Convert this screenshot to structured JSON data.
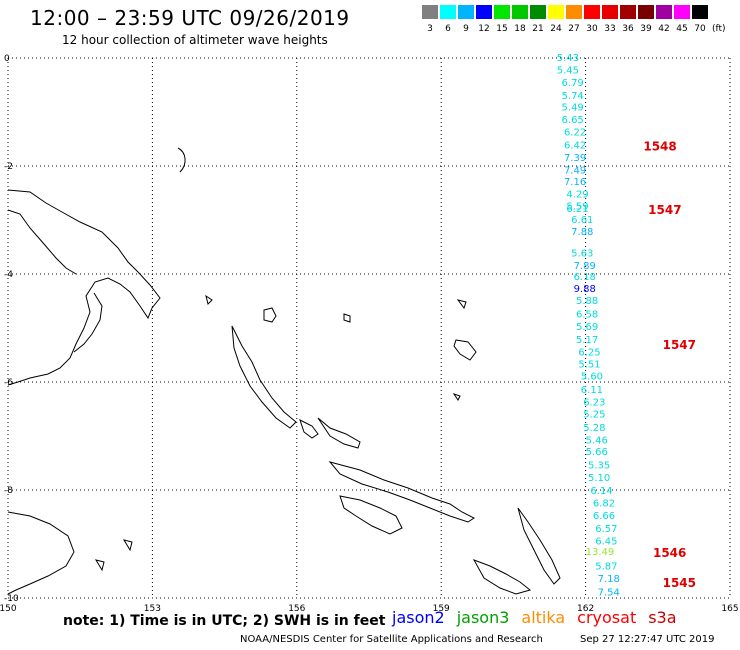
{
  "header": {
    "title": "12:00 – 23:59 UTC 09/26/2019",
    "subtitle": "12 hour collection of altimeter wave heights"
  },
  "legend": {
    "colors": [
      "#808080",
      "#00ffff",
      "#00b4ff",
      "#0000ff",
      "#00e600",
      "#00c800",
      "#008c00",
      "#ffff00",
      "#ff8c00",
      "#ff0000",
      "#e60000",
      "#a00000",
      "#780000",
      "#a000a0",
      "#ff00ff",
      "#000000"
    ],
    "labels": [
      "3",
      "6",
      "9",
      "12",
      "15",
      "18",
      "21",
      "24",
      "27",
      "30",
      "33",
      "36",
      "39",
      "42",
      "45",
      "70"
    ],
    "unit": "(ft)"
  },
  "axes": {
    "x_ticks": [
      "150",
      "153",
      "156",
      "159",
      "162",
      "165"
    ],
    "y_ticks": [
      "0",
      "-2",
      "-4",
      "-6",
      "-8",
      "-10"
    ]
  },
  "track_labels": [
    {
      "time": "1548",
      "lat": -1.62
    },
    {
      "time": "1547",
      "lat": -2.8
    },
    {
      "time": "1547",
      "lat": -5.3
    },
    {
      "time": "1546",
      "lat": -9.15
    },
    {
      "time": "1545",
      "lat": -9.7
    }
  ],
  "observations": [
    {
      "v": "5.43",
      "lat": 0.0,
      "lon": 161.4,
      "c": "#00dcdc"
    },
    {
      "v": "5.45",
      "lat": -0.23,
      "lon": 161.4,
      "c": "#00dcdc"
    },
    {
      "v": "6.79",
      "lat": -0.46,
      "lon": 161.5,
      "c": "#00dcdc"
    },
    {
      "v": "5.74",
      "lat": -0.7,
      "lon": 161.5,
      "c": "#00dcdc"
    },
    {
      "v": "5.49",
      "lat": -0.92,
      "lon": 161.5,
      "c": "#00dcdc"
    },
    {
      "v": "6.65",
      "lat": -1.15,
      "lon": 161.5,
      "c": "#00dcdc"
    },
    {
      "v": "6.22",
      "lat": -1.38,
      "lon": 161.55,
      "c": "#00dcdc"
    },
    {
      "v": "6.42",
      "lat": -1.62,
      "lon": 161.55,
      "c": "#00dcdc"
    },
    {
      "v": "7.39",
      "lat": -1.85,
      "lon": 161.55,
      "c": "#00b4ff"
    },
    {
      "v": "7.49",
      "lat": -2.08,
      "lon": 161.55,
      "c": "#00b4ff"
    },
    {
      "v": "7.16",
      "lat": -2.3,
      "lon": 161.55,
      "c": "#00b4ff"
    },
    {
      "v": "4.29",
      "lat": -2.53,
      "lon": 161.6,
      "c": "#00dcdc"
    },
    {
      "v": "5.59",
      "lat": -2.75,
      "lon": 161.6,
      "c": "#00dcdc"
    },
    {
      "v": "6.21",
      "lat": -2.8,
      "lon": 161.6,
      "c": "#00dcdc"
    },
    {
      "v": "6.61",
      "lat": -3.0,
      "lon": 161.7,
      "c": "#00dcdc"
    },
    {
      "v": "7.88",
      "lat": -3.22,
      "lon": 161.7,
      "c": "#00b4ff"
    },
    {
      "v": "5.63",
      "lat": -3.62,
      "lon": 161.7,
      "c": "#00dcdc"
    },
    {
      "v": "7.89",
      "lat": -3.85,
      "lon": 161.75,
      "c": "#00b4ff"
    },
    {
      "v": "6.18",
      "lat": -4.06,
      "lon": 161.75,
      "c": "#00dcdc"
    },
    {
      "v": "9.88",
      "lat": -4.28,
      "lon": 161.75,
      "c": "#0000ff"
    },
    {
      "v": "5.88",
      "lat": -4.5,
      "lon": 161.8,
      "c": "#00dcdc"
    },
    {
      "v": "6.58",
      "lat": -4.75,
      "lon": 161.8,
      "c": "#00dcdc"
    },
    {
      "v": "5.69",
      "lat": -4.98,
      "lon": 161.8,
      "c": "#00dcdc"
    },
    {
      "v": "5.17",
      "lat": -5.22,
      "lon": 161.8,
      "c": "#00dcdc"
    },
    {
      "v": "6.25",
      "lat": -5.45,
      "lon": 161.85,
      "c": "#00dcdc"
    },
    {
      "v": "5.51",
      "lat": -5.68,
      "lon": 161.85,
      "c": "#00dcdc"
    },
    {
      "v": "5.60",
      "lat": -5.9,
      "lon": 161.9,
      "c": "#00dcdc"
    },
    {
      "v": "6.11",
      "lat": -6.15,
      "lon": 161.9,
      "c": "#00dcdc"
    },
    {
      "v": "6.23",
      "lat": -6.38,
      "lon": 161.95,
      "c": "#00dcdc"
    },
    {
      "v": "5.25",
      "lat": -6.6,
      "lon": 161.95,
      "c": "#00dcdc"
    },
    {
      "v": "5.28",
      "lat": -6.85,
      "lon": 161.95,
      "c": "#00dcdc"
    },
    {
      "v": "5.46",
      "lat": -7.08,
      "lon": 162.0,
      "c": "#00dcdc"
    },
    {
      "v": "5.66",
      "lat": -7.3,
      "lon": 162.0,
      "c": "#00dcdc"
    },
    {
      "v": "5.35",
      "lat": -7.55,
      "lon": 162.05,
      "c": "#00dcdc"
    },
    {
      "v": "5.10",
      "lat": -7.78,
      "lon": 162.05,
      "c": "#00dcdc"
    },
    {
      "v": "6.14",
      "lat": -8.02,
      "lon": 162.1,
      "c": "#00dcdc"
    },
    {
      "v": "6.82",
      "lat": -8.25,
      "lon": 162.15,
      "c": "#00dcdc"
    },
    {
      "v": "6.66",
      "lat": -8.48,
      "lon": 162.15,
      "c": "#00dcdc"
    },
    {
      "v": "6.57",
      "lat": -8.72,
      "lon": 162.2,
      "c": "#00dcdc"
    },
    {
      "v": "6.45",
      "lat": -8.95,
      "lon": 162.2,
      "c": "#00dcdc"
    },
    {
      "v": "13.49",
      "lat": -9.15,
      "lon": 162.0,
      "c": "#96e632"
    },
    {
      "v": "5.87",
      "lat": -9.42,
      "lon": 162.2,
      "c": "#00dcdc"
    },
    {
      "v": "7.18",
      "lat": -9.65,
      "lon": 162.25,
      "c": "#00b4ff"
    },
    {
      "v": "7.54",
      "lat": -9.9,
      "lon": 162.25,
      "c": "#00b4ff"
    }
  ],
  "footer": {
    "note": "note:  1) Time is in UTC;  2) SWH is in feet",
    "satellites": [
      {
        "name": "jason2",
        "color": "#0000ff"
      },
      {
        "name": "jason3",
        "color": "#00a000"
      },
      {
        "name": "altika",
        "color": "#ff8c00"
      },
      {
        "name": "cryosat",
        "color": "#ff0000"
      },
      {
        "name": "s3a",
        "color": "#c80000"
      }
    ],
    "credit": "NOAA/NESDIS Center for Satellite Applications and Research",
    "timestamp": "Sep 27 12:27:47 UTC 2019"
  }
}
